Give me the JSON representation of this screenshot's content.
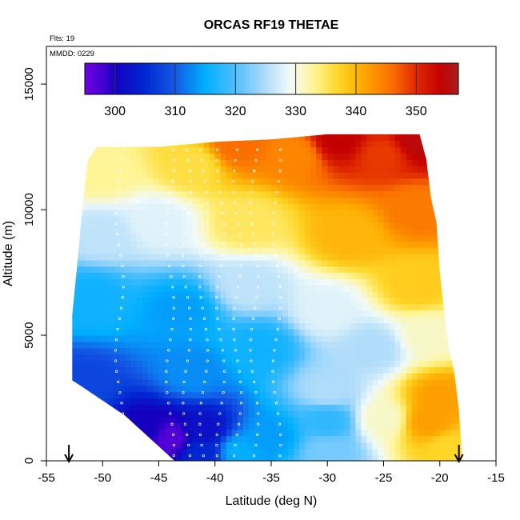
{
  "chart_data": {
    "type": "heatmap",
    "title": "ORCAS RF19 THETAE",
    "annotations": {
      "flights": "Flts: 19",
      "date": "MMDD: 0229"
    },
    "xlabel": "Latitude (deg N)",
    "ylabel": "Altitude (m)",
    "xlim": [
      -55,
      -15
    ],
    "ylim": [
      0,
      16500
    ],
    "xticks": [
      -55,
      -50,
      -45,
      -40,
      -35,
      -30,
      -25,
      -20,
      -15
    ],
    "yticks": [
      0,
      5000,
      10000,
      15000
    ],
    "xtick_labels": [
      "-55",
      "-50",
      "-45",
      "-40",
      "-35",
      "-30",
      "-25",
      "-20",
      "-15"
    ],
    "ytick_labels": [
      "0",
      "5000",
      "10000",
      "15000"
    ],
    "colorbar": {
      "range": [
        295,
        357
      ],
      "ticks": [
        300,
        310,
        320,
        330,
        340,
        350
      ],
      "tick_labels": [
        "300",
        "310",
        "320",
        "330",
        "340",
        "350"
      ],
      "placement": "top-inside"
    },
    "arrow_markers_latitude": [
      -53,
      -18.3
    ],
    "domain_outline": {
      "left": [
        [
          -43.6,
          0
        ],
        [
          -48,
          1800
        ],
        [
          -52,
          3000
        ],
        [
          -52.7,
          3200
        ],
        [
          -52.7,
          5800
        ],
        [
          -52.3,
          7600
        ],
        [
          -51.7,
          10500
        ],
        [
          -51.3,
          12000
        ],
        [
          -50.5,
          12500
        ],
        [
          -45,
          12500
        ],
        [
          -40,
          12700
        ]
      ],
      "right": [
        [
          -18,
          0
        ],
        [
          -18.3,
          2000
        ],
        [
          -18.7,
          3500
        ],
        [
          -19.2,
          4500
        ],
        [
          -19.5,
          5500
        ],
        [
          -20,
          7500
        ],
        [
          -20.3,
          9500
        ],
        [
          -20.8,
          10500
        ],
        [
          -21.2,
          12000
        ],
        [
          -21.8,
          13000
        ]
      ],
      "top": [
        [
          -40,
          12700
        ],
        [
          -35,
          12800
        ],
        [
          -30,
          13000
        ],
        [
          -21.8,
          13000
        ]
      ]
    },
    "field_description": "Equivalent potential temperature (K): cold near the surface at -45 to -38 deg N, warm aloft toward the tropics, warm boundary layer north of -25 deg N",
    "anchors": [
      {
        "lat": -52,
        "alt": 3000,
        "value": 308
      },
      {
        "lat": -51,
        "alt": 6500,
        "value": 316
      },
      {
        "lat": -50,
        "alt": 9000,
        "value": 326
      },
      {
        "lat": -50,
        "alt": 11500,
        "value": 333
      },
      {
        "lat": -46,
        "alt": 1200,
        "value": 300
      },
      {
        "lat": -44,
        "alt": 900,
        "value": 297
      },
      {
        "lat": -41,
        "alt": 1200,
        "value": 302
      },
      {
        "lat": -41,
        "alt": 400,
        "value": 305
      },
      {
        "lat": -38,
        "alt": 400,
        "value": 315
      },
      {
        "lat": -35,
        "alt": 1000,
        "value": 314
      },
      {
        "lat": -30,
        "alt": 1600,
        "value": 318
      },
      {
        "lat": -30,
        "alt": 400,
        "value": 322
      },
      {
        "lat": -25,
        "alt": 1700,
        "value": 331
      },
      {
        "lat": -21,
        "alt": 1600,
        "value": 342
      },
      {
        "lat": -19,
        "alt": 500,
        "value": 337
      },
      {
        "lat": -20,
        "alt": 2500,
        "value": 342
      },
      {
        "lat": -30,
        "alt": 2800,
        "value": 325
      },
      {
        "lat": -42,
        "alt": 3500,
        "value": 313
      },
      {
        "lat": -43,
        "alt": 6000,
        "value": 314
      },
      {
        "lat": -36,
        "alt": 4500,
        "value": 316
      },
      {
        "lat": -26,
        "alt": 4500,
        "value": 325
      },
      {
        "lat": -21,
        "alt": 5000,
        "value": 331
      },
      {
        "lat": -22,
        "alt": 7000,
        "value": 338
      },
      {
        "lat": -30,
        "alt": 6000,
        "value": 328
      },
      {
        "lat": -37,
        "alt": 7000,
        "value": 326
      },
      {
        "lat": -45,
        "alt": 9500,
        "value": 328
      },
      {
        "lat": -37,
        "alt": 9500,
        "value": 335
      },
      {
        "lat": -28,
        "alt": 9000,
        "value": 340
      },
      {
        "lat": -22,
        "alt": 10000,
        "value": 345
      },
      {
        "lat": -42,
        "alt": 11800,
        "value": 336
      },
      {
        "lat": -33,
        "alt": 12200,
        "value": 344
      },
      {
        "lat": -25,
        "alt": 12200,
        "value": 349
      },
      {
        "lat": -22,
        "alt": 12700,
        "value": 355
      },
      {
        "lat": -29,
        "alt": 12800,
        "value": 354
      },
      {
        "lat": -38,
        "alt": 12600,
        "value": 346
      }
    ],
    "flight_track_samples_latitude": [
      -48.5,
      -44,
      -42.5,
      -41,
      -39.5,
      -38,
      -36.5,
      -34.5
    ]
  }
}
